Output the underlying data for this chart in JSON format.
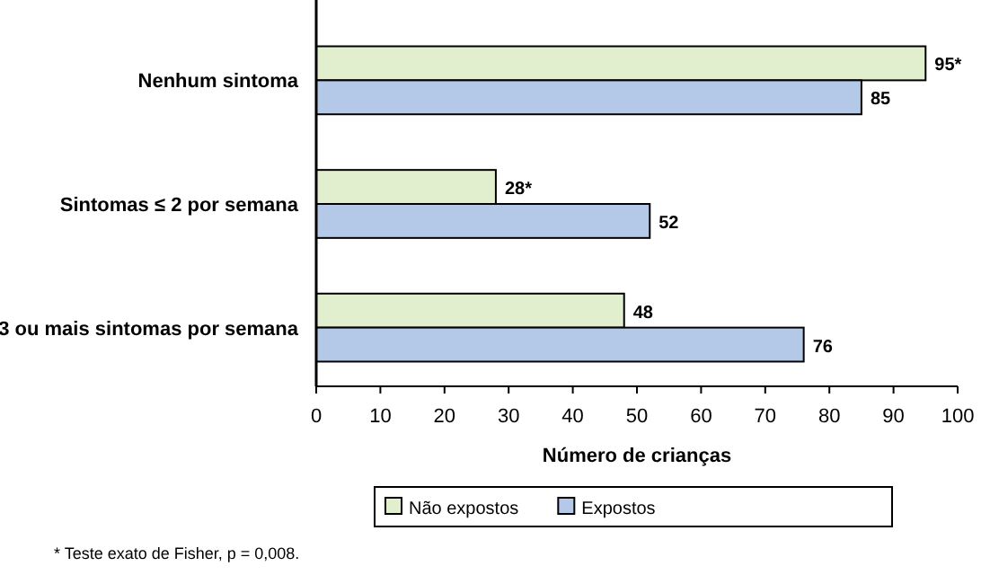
{
  "chart_data": {
    "type": "bar",
    "orientation": "horizontal",
    "categories": [
      "Nenhum sintoma",
      "Sintomas ≤ 2 por semana",
      "3 ou mais sintomas por semana"
    ],
    "series": [
      {
        "name": "Não expostos",
        "color": "#e2efcf",
        "values": [
          95,
          28,
          48
        ],
        "value_labels": [
          "95*",
          "28*",
          "48"
        ]
      },
      {
        "name": "Expostos",
        "color": "#b4c8e8",
        "values": [
          85,
          52,
          76
        ],
        "value_labels": [
          "85",
          "52",
          "76"
        ]
      }
    ],
    "xlim": [
      0,
      100
    ],
    "xticks": [
      0,
      10,
      20,
      30,
      40,
      50,
      60,
      70,
      80,
      90,
      100
    ],
    "xlabel": "Número de crianças",
    "legend": "bottom",
    "grid": false,
    "annotations": [
      "* Teste exato de Fisher, p = 0,008."
    ]
  }
}
